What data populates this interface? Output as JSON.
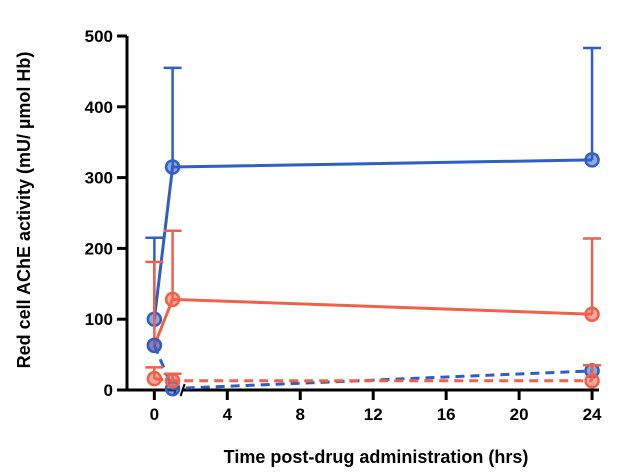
{
  "chart_data": {
    "type": "line",
    "title": "",
    "xlabel": "Time post-drug administration (hrs)",
    "ylabel": "Red cell AChE activity (mU/ µmol Hb)",
    "xlim": [
      -1.5,
      24.6
    ],
    "ylim": [
      0,
      500
    ],
    "xticks": [
      0,
      4,
      8,
      12,
      16,
      20,
      24
    ],
    "yticks": [
      0,
      100,
      200,
      300,
      400,
      500
    ],
    "x_break_after": 1,
    "grid": false,
    "legend": "none",
    "series": [
      {
        "color": "#2f5fc4",
        "line_style": "solid",
        "x": [
          0,
          1,
          24
        ],
        "y": [
          100,
          315,
          325
        ],
        "error_upper": [
          115,
          140,
          158
        ]
      },
      {
        "color": "#f0614a",
        "line_style": "solid",
        "x": [
          0,
          1,
          24
        ],
        "y": [
          63,
          128,
          107
        ],
        "error_upper": [
          118,
          97,
          107
        ]
      },
      {
        "color": "#2f5fc4",
        "line_style": "dashed",
        "x": [
          0,
          1,
          24
        ],
        "y": [
          63,
          2,
          27
        ],
        "error_upper": [
          0,
          0,
          8
        ]
      },
      {
        "color": "#f0614a",
        "line_style": "dashed",
        "x": [
          0,
          1,
          24
        ],
        "y": [
          16,
          13,
          13
        ],
        "error_upper": [
          16,
          10,
          22
        ]
      }
    ]
  }
}
